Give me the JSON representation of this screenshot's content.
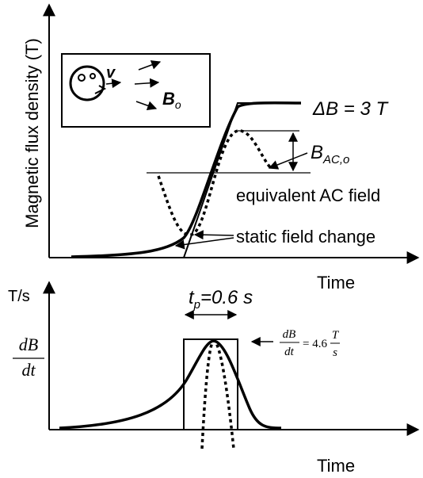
{
  "top_panel": {
    "y_label": "Magnetic flux density (T)",
    "x_label": "Time",
    "delta_b": "ΔB = 3 T",
    "b_ac": {
      "main": "B",
      "sub": "AC,o"
    },
    "ac_label": "equivalent AC field",
    "static_label": "static field change",
    "inset": {
      "v": "v",
      "b": {
        "main": "B",
        "sub": "o"
      }
    }
  },
  "bottom_panel": {
    "y_label": "T/s",
    "dbdt": {
      "num": "dB",
      "den": "dt"
    },
    "tp": {
      "main": "t",
      "sub": "p",
      "rest": "=0.6 s"
    },
    "rate": {
      "num": "dB",
      "den": "dt",
      "eq": "= 4.6",
      "unit_num": "T",
      "unit_den": "s"
    },
    "x_label": "Time"
  }
}
